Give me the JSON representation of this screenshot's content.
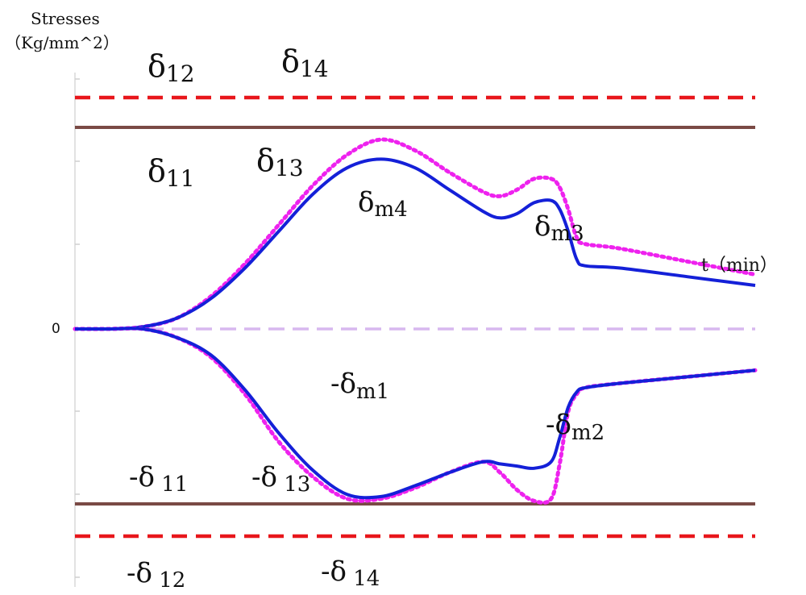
{
  "chart_data": {
    "type": "line",
    "ylabel_line1": "Stresses",
    "ylabel_line2": "（Kg/mm^2）",
    "xlabel": "t（min）",
    "zero_tick": "0",
    "ylim": [
      -1.5,
      1.5
    ],
    "thresholds": [
      {
        "name": "δ12",
        "value": 1.38,
        "style": "dashed",
        "color": "#e8161b"
      },
      {
        "name": "δ11",
        "value": 1.19,
        "style": "solid",
        "color": "#7a4a45"
      },
      {
        "name": "zero",
        "value": 0.0,
        "style": "dashed",
        "color": "#d7b8ef"
      },
      {
        "name": "-δ11",
        "value": -1.16,
        "style": "solid",
        "color": "#7a4a45"
      },
      {
        "name": "-δ12",
        "value": -1.37,
        "style": "dashed",
        "color": "#e8161b"
      }
    ],
    "series": [
      {
        "key": "blue_upper",
        "color": "#1420d8",
        "style": "solid",
        "points": [
          [
            0,
            0
          ],
          [
            2,
            0
          ],
          [
            4,
            0.01
          ],
          [
            6,
            0.05
          ],
          [
            8,
            0.14
          ],
          [
            10,
            0.28
          ],
          [
            12,
            0.45
          ],
          [
            14,
            0.62
          ],
          [
            16,
            0.74
          ],
          [
            18,
            0.78
          ],
          [
            20,
            0.74
          ],
          [
            22,
            0.64
          ],
          [
            24,
            0.54
          ],
          [
            25,
            0.51
          ],
          [
            26,
            0.53
          ],
          [
            27,
            0.58
          ],
          [
            28,
            0.59
          ],
          [
            28.5,
            0.55
          ],
          [
            29,
            0.45
          ],
          [
            29.5,
            0.32
          ],
          [
            30,
            0.29
          ],
          [
            32,
            0.28
          ],
          [
            36,
            0.24
          ],
          [
            40,
            0.2
          ]
        ]
      },
      {
        "key": "magenta_upper",
        "color": "#ee22ee",
        "style": "dotted",
        "points": [
          [
            0,
            0
          ],
          [
            2,
            0
          ],
          [
            4,
            0.01
          ],
          [
            6,
            0.05
          ],
          [
            8,
            0.15
          ],
          [
            10,
            0.3
          ],
          [
            12,
            0.48
          ],
          [
            14,
            0.66
          ],
          [
            16,
            0.8
          ],
          [
            18,
            0.87
          ],
          [
            20,
            0.82
          ],
          [
            22,
            0.72
          ],
          [
            24,
            0.63
          ],
          [
            25,
            0.61
          ],
          [
            26,
            0.64
          ],
          [
            27,
            0.69
          ],
          [
            28,
            0.69
          ],
          [
            28.5,
            0.65
          ],
          [
            29,
            0.55
          ],
          [
            29.5,
            0.42
          ],
          [
            30,
            0.39
          ],
          [
            32,
            0.37
          ],
          [
            36,
            0.31
          ],
          [
            40,
            0.25
          ]
        ]
      },
      {
        "key": "blue_lower",
        "color": "#1420d8",
        "style": "solid",
        "points": [
          [
            0,
            0
          ],
          [
            2,
            0
          ],
          [
            4,
            0
          ],
          [
            6,
            -0.04
          ],
          [
            8,
            -0.12
          ],
          [
            10,
            -0.28
          ],
          [
            12,
            -0.48
          ],
          [
            14,
            -0.65
          ],
          [
            16,
            -0.76
          ],
          [
            18,
            -0.77
          ],
          [
            20,
            -0.72
          ],
          [
            22,
            -0.66
          ],
          [
            24,
            -0.61
          ],
          [
            25,
            -0.62
          ],
          [
            26,
            -0.63
          ],
          [
            27,
            -0.64
          ],
          [
            28,
            -0.61
          ],
          [
            28.5,
            -0.5
          ],
          [
            29,
            -0.36
          ],
          [
            29.5,
            -0.29
          ],
          [
            30,
            -0.27
          ],
          [
            32,
            -0.25
          ],
          [
            36,
            -0.22
          ],
          [
            40,
            -0.19
          ]
        ]
      },
      {
        "key": "magenta_lower",
        "color": "#ee22ee",
        "style": "dotted",
        "points": [
          [
            0,
            0
          ],
          [
            2,
            0
          ],
          [
            4,
            0
          ],
          [
            6,
            -0.04
          ],
          [
            8,
            -0.13
          ],
          [
            10,
            -0.3
          ],
          [
            12,
            -0.52
          ],
          [
            14,
            -0.68
          ],
          [
            16,
            -0.78
          ],
          [
            18,
            -0.78
          ],
          [
            20,
            -0.73
          ],
          [
            22,
            -0.66
          ],
          [
            24,
            -0.61
          ],
          [
            25,
            -0.66
          ],
          [
            26,
            -0.74
          ],
          [
            27,
            -0.79
          ],
          [
            28,
            -0.78
          ],
          [
            28.5,
            -0.62
          ],
          [
            29,
            -0.38
          ],
          [
            29.5,
            -0.3
          ],
          [
            30,
            -0.27
          ],
          [
            32,
            -0.25
          ],
          [
            36,
            -0.22
          ],
          [
            40,
            -0.19
          ]
        ]
      }
    ],
    "annotations": [
      {
        "main": "δ",
        "sub": "12"
      },
      {
        "main": "δ",
        "sub": "14"
      },
      {
        "main": "δ",
        "sub": "11"
      },
      {
        "main": "δ",
        "sub": "13"
      },
      {
        "main": "δ",
        "sub": "m4"
      },
      {
        "main": "δ",
        "sub": "m3"
      },
      {
        "main": "-δ",
        "sub": "m1"
      },
      {
        "main": "-δ",
        "sub": "m2"
      },
      {
        "main": "-δ",
        "sub": " 11"
      },
      {
        "main": "-δ",
        "sub": " 13"
      },
      {
        "main": "-δ",
        "sub": " 12"
      },
      {
        "main": "-δ",
        "sub": " 14"
      }
    ]
  }
}
